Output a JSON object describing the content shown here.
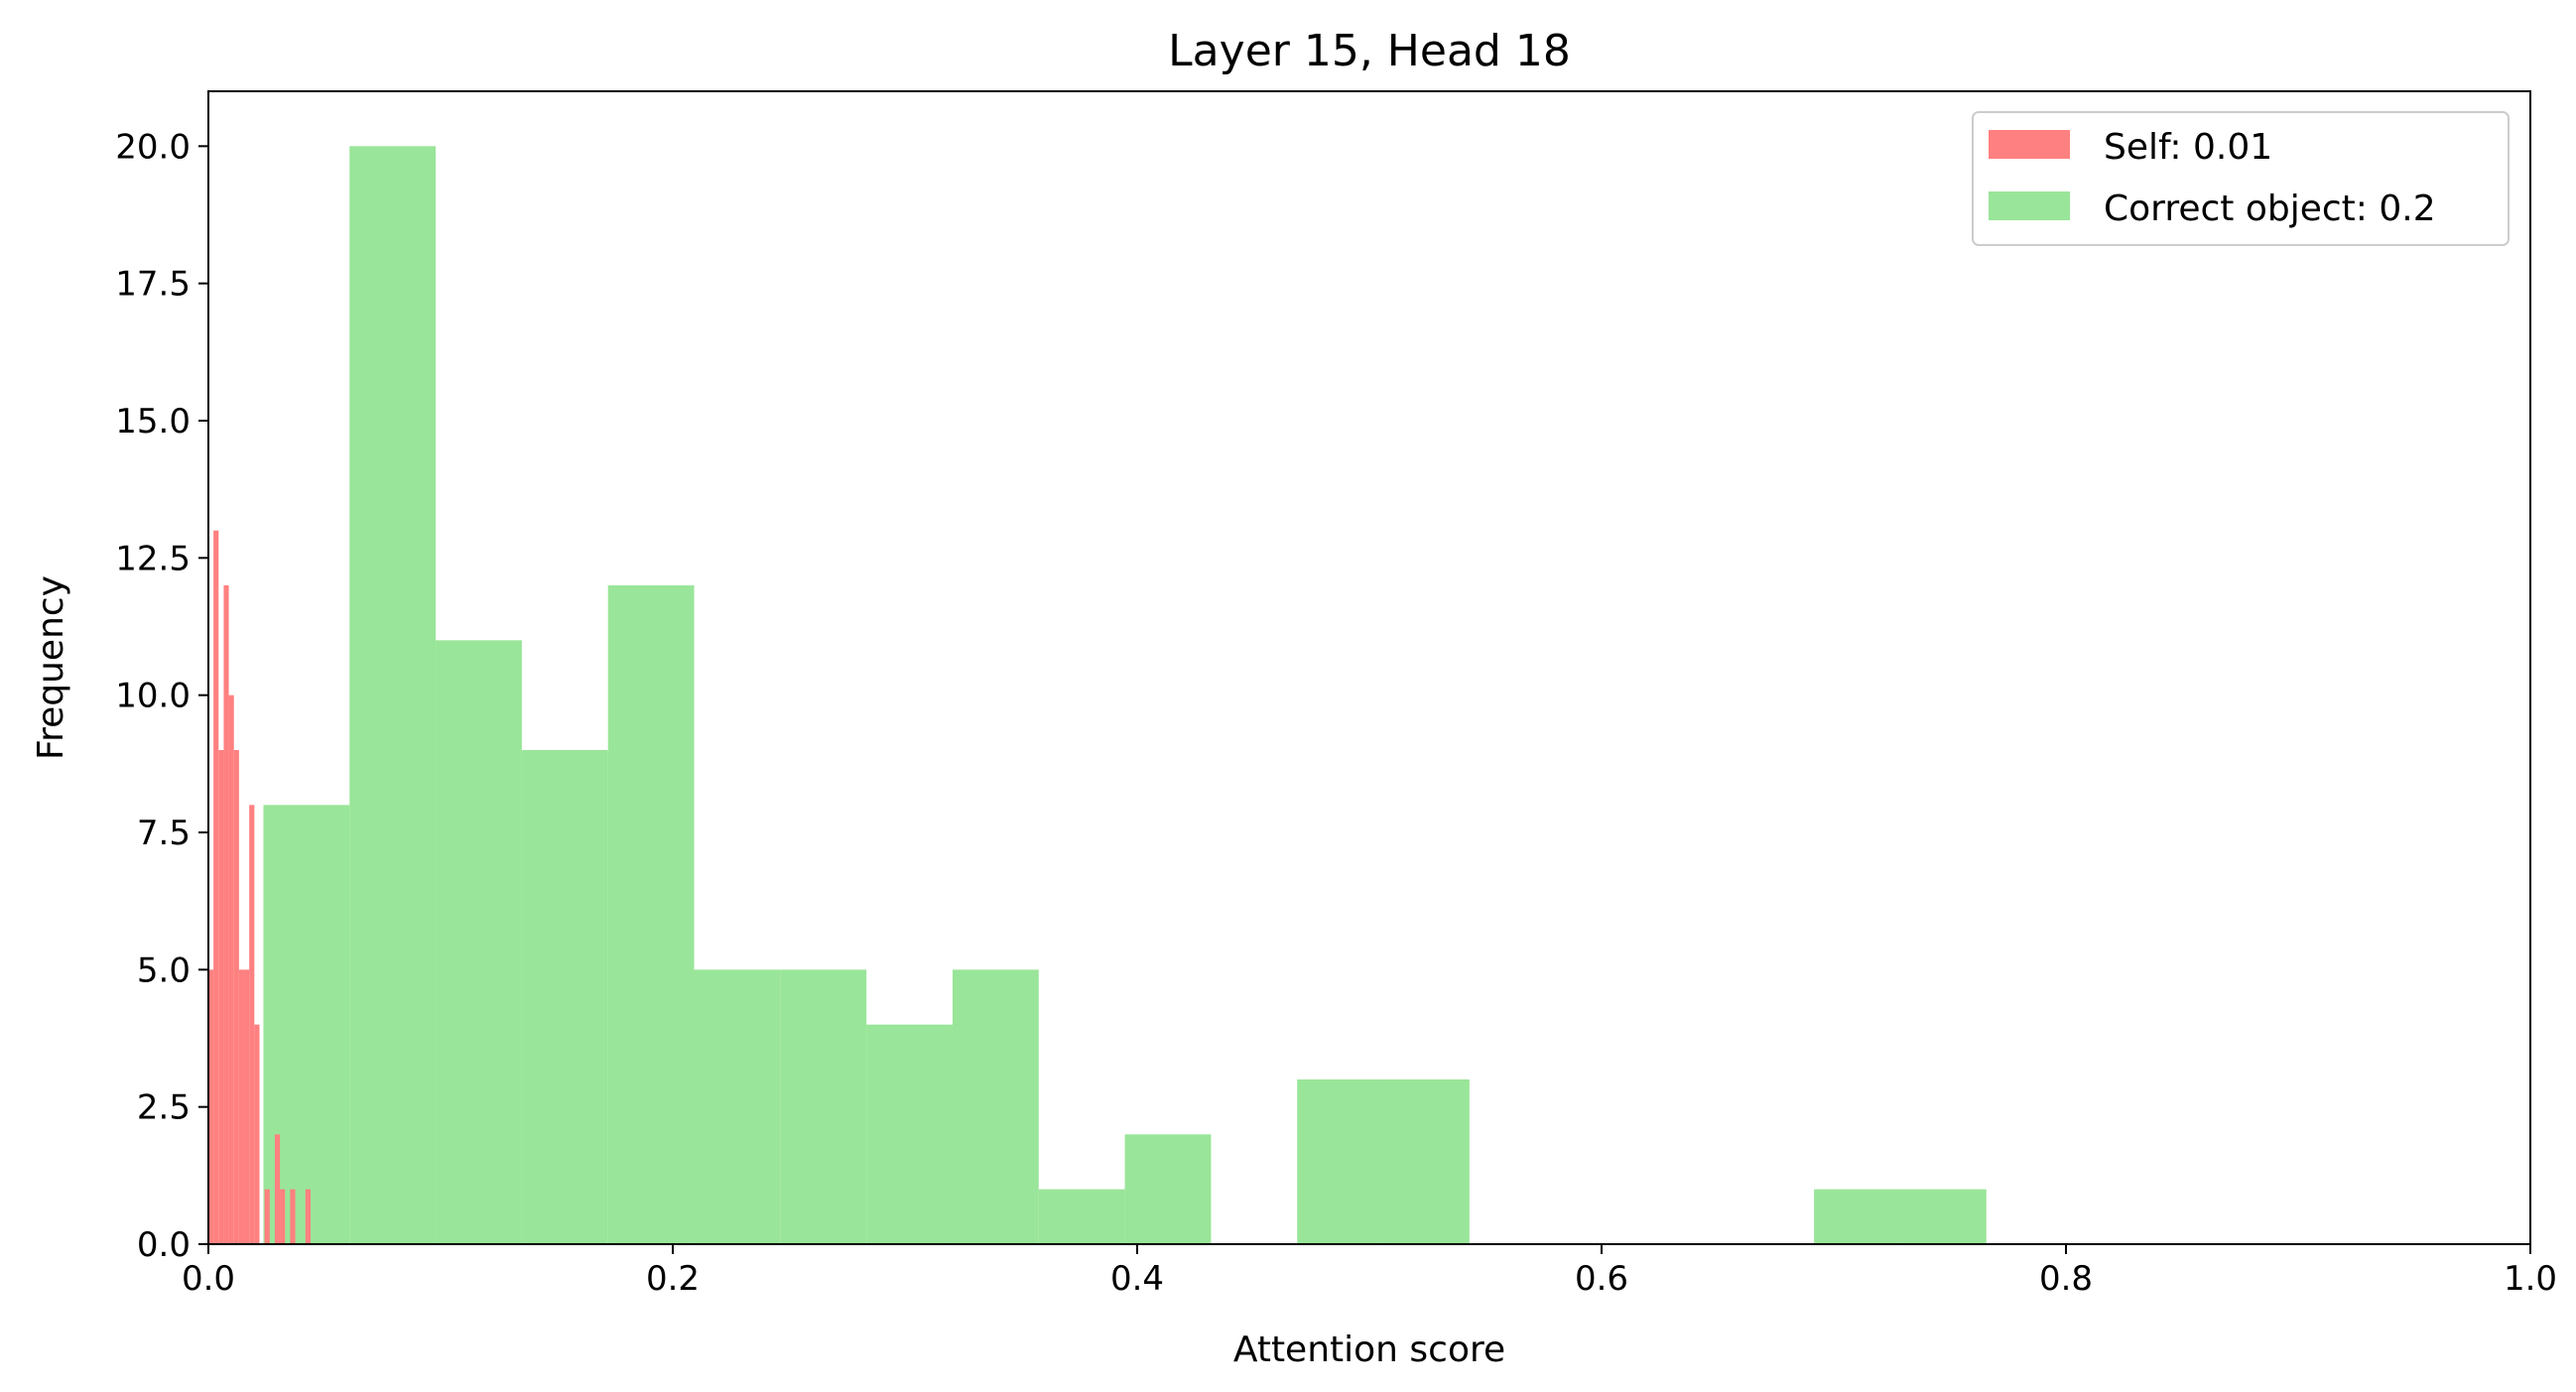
{
  "chart_data": {
    "type": "histogram",
    "title": "Layer 15, Head 18",
    "xlabel": "Attention score",
    "ylabel": "Frequency",
    "xlim": [
      0.0,
      1.0
    ],
    "ylim": [
      0.0,
      21.0
    ],
    "xticks": [
      0.0,
      0.2,
      0.4,
      0.6,
      0.8,
      1.0
    ],
    "xtick_labels": [
      "0.0",
      "0.2",
      "0.4",
      "0.6",
      "0.8",
      "1.0"
    ],
    "yticks": [
      0.0,
      2.5,
      5.0,
      7.5,
      10.0,
      12.5,
      15.0,
      17.5,
      20.0
    ],
    "ytick_labels": [
      "0.0",
      "2.5",
      "5.0",
      "7.5",
      "10.0",
      "12.5",
      "15.0",
      "17.5",
      "20.0"
    ],
    "grid": false,
    "legend_position": "top-right",
    "series": [
      {
        "name": "Self: 0.01",
        "color": "#ff8080",
        "alpha": 1.0,
        "bin_edges": [
          0.0,
          0.0022,
          0.0044,
          0.0066,
          0.0088,
          0.011,
          0.0132,
          0.0154,
          0.0176,
          0.0198,
          0.022,
          0.0242,
          0.0264,
          0.0286,
          0.0308,
          0.033,
          0.0352,
          0.0374,
          0.0396,
          0.0418,
          0.044,
          0.0462
        ],
        "counts": [
          5,
          13,
          9,
          12,
          10,
          9,
          5,
          5,
          8,
          4,
          0,
          1,
          0,
          2,
          1,
          0,
          1,
          0,
          0,
          1,
          0
        ]
      },
      {
        "name": "Correct object: 0.2",
        "color": "#99e599",
        "alpha": 1.0,
        "bin_edges": [
          0.0237,
          0.0608,
          0.0979,
          0.135,
          0.1721,
          0.2092,
          0.2463,
          0.2834,
          0.3205,
          0.3576,
          0.3947,
          0.4318,
          0.4689,
          0.506,
          0.5431,
          0.5802,
          0.6173,
          0.6544,
          0.6915,
          0.7286,
          0.7657
        ],
        "counts": [
          8,
          20,
          11,
          9,
          12,
          5,
          5,
          4,
          5,
          1,
          2,
          0,
          3,
          3,
          0,
          0,
          0,
          0,
          1,
          1
        ]
      }
    ]
  }
}
